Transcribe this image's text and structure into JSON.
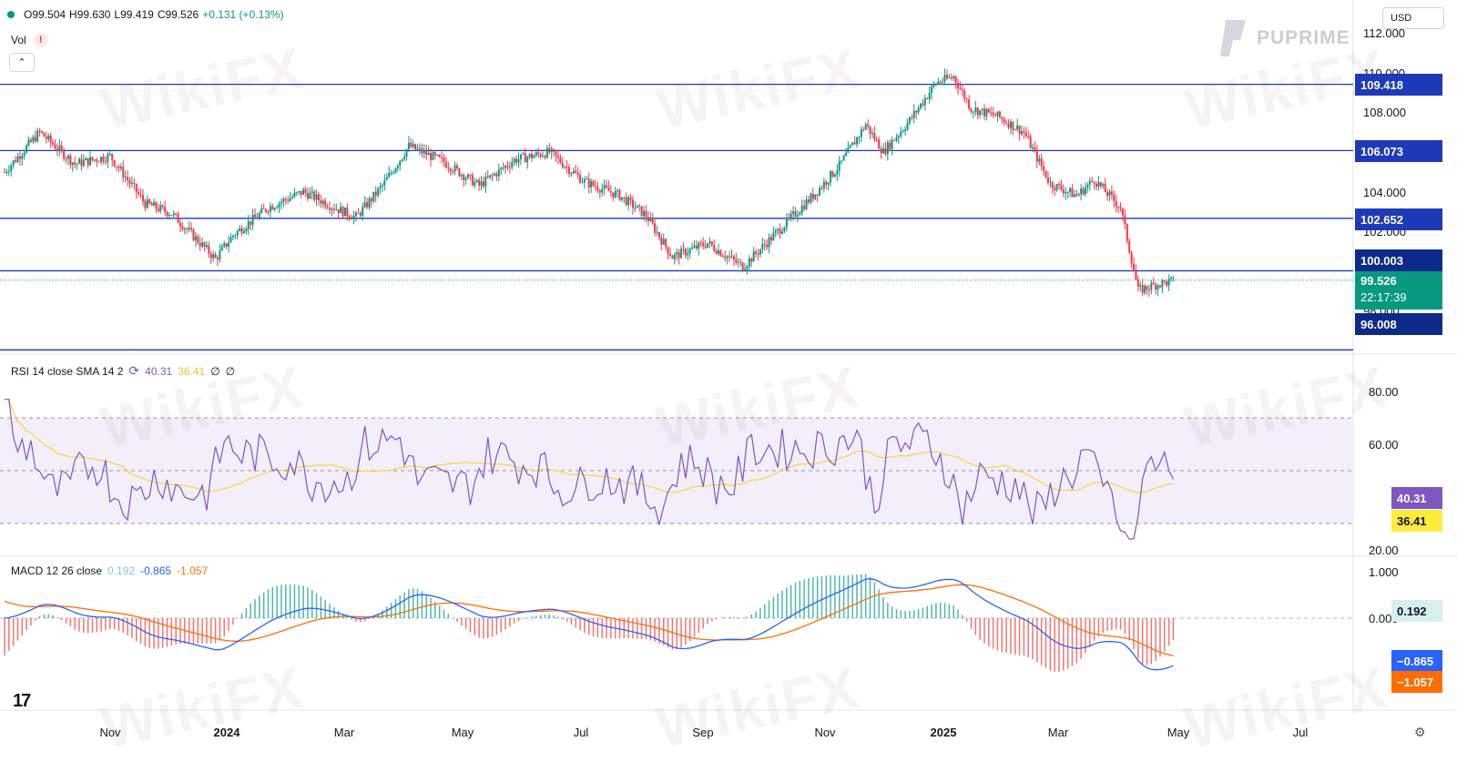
{
  "header": {
    "ohlc_open": "O99.504",
    "ohlc_high": "H99.630",
    "ohlc_low": "L99.419",
    "ohlc_close": "C99.526",
    "ohlc_change": "+0.131 (+0.13%)",
    "vol_label": "Vol",
    "vol_warning": "!",
    "currency": "USD",
    "brand": "PUPRIME",
    "watermark": "WikiFX"
  },
  "price_pane": {
    "ticks": [
      "112.000",
      "110.000",
      "108.000",
      "104.000",
      "102.000",
      "98.000"
    ],
    "levels": [
      {
        "label": "109.418",
        "value": 109.418
      },
      {
        "label": "106.073",
        "value": 106.073
      },
      {
        "label": "102.652",
        "value": 102.652
      },
      {
        "label": "100.003",
        "value": 100.003
      },
      {
        "label": "96.008",
        "value": 96.008
      }
    ],
    "last_price": "99.526",
    "countdown": "22:17:39",
    "colors": {
      "up": "#089981",
      "down": "#f23645",
      "level_line": "#1e3ab8",
      "level_badge": "#1e3ab8",
      "dark_badge": "#0d2a8a"
    }
  },
  "rsi_pane": {
    "title": "RSI 14 close SMA 14 2",
    "value_rsi": "40.31",
    "value_sma": "36.41",
    "extra1": "∅",
    "extra2": "∅",
    "ticks": [
      "80.00",
      "60.00",
      "20.00"
    ],
    "rsi_badge": "40.31",
    "sma_badge": "36.41",
    "colors": {
      "rsi": "#7e57c2",
      "sma": "#f5d63d",
      "band": "#f2effb"
    }
  },
  "macd_pane": {
    "title": "MACD 12 26 close",
    "value_hist": "0.192",
    "value_macd": "-0.865",
    "value_signal": "-1.057",
    "ticks": [
      "1.000",
      "0.000"
    ],
    "hist_badge": "0.192",
    "macd_badge": "−0.865",
    "signal_badge": "−1.057",
    "colors": {
      "macd": "#2962ff",
      "signal": "#ff6d00",
      "hist_pos": "#26a69a",
      "hist_neg": "#ef5350"
    }
  },
  "x_axis": {
    "labels": [
      "Nov",
      "2024",
      "Mar",
      "May",
      "Jul",
      "Sep",
      "Nov",
      "2025",
      "Mar",
      "May",
      "Jul"
    ],
    "bold": [
      "2024",
      "2025"
    ]
  },
  "chart_data": {
    "type": "candlestick",
    "series_points": [
      {
        "x": 0,
        "y": 105.0
      },
      {
        "x": 4,
        "y": 107.0
      },
      {
        "x": 8,
        "y": 105.4
      },
      {
        "x": 12,
        "y": 105.8
      },
      {
        "x": 16,
        "y": 103.4
      },
      {
        "x": 19,
        "y": 102.9
      },
      {
        "x": 24,
        "y": 100.6
      },
      {
        "x": 26,
        "y": 101.8
      },
      {
        "x": 30,
        "y": 103.2
      },
      {
        "x": 34,
        "y": 104.0
      },
      {
        "x": 38,
        "y": 103.1
      },
      {
        "x": 40,
        "y": 102.7
      },
      {
        "x": 43,
        "y": 104.3
      },
      {
        "x": 46,
        "y": 106.3
      },
      {
        "x": 50,
        "y": 105.5
      },
      {
        "x": 54,
        "y": 104.3
      },
      {
        "x": 58,
        "y": 105.6
      },
      {
        "x": 62,
        "y": 106.0
      },
      {
        "x": 66,
        "y": 104.5
      },
      {
        "x": 70,
        "y": 103.8
      },
      {
        "x": 73,
        "y": 102.8
      },
      {
        "x": 76,
        "y": 100.7
      },
      {
        "x": 80,
        "y": 101.4
      },
      {
        "x": 84,
        "y": 100.2
      },
      {
        "x": 88,
        "y": 102.0
      },
      {
        "x": 92,
        "y": 103.8
      },
      {
        "x": 95,
        "y": 105.3
      },
      {
        "x": 98,
        "y": 107.4
      },
      {
        "x": 100,
        "y": 106.0
      },
      {
        "x": 103,
        "y": 107.6
      },
      {
        "x": 106,
        "y": 109.5
      },
      {
        "x": 108,
        "y": 109.8
      },
      {
        "x": 110,
        "y": 108.2
      },
      {
        "x": 113,
        "y": 107.8
      },
      {
        "x": 116,
        "y": 107.0
      },
      {
        "x": 119,
        "y": 104.4
      },
      {
        "x": 122,
        "y": 103.8
      },
      {
        "x": 124,
        "y": 104.6
      },
      {
        "x": 127,
        "y": 103.2
      },
      {
        "x": 129,
        "y": 99.0
      },
      {
        "x": 131,
        "y": 99.3
      },
      {
        "x": 133,
        "y": 99.5
      }
    ]
  }
}
